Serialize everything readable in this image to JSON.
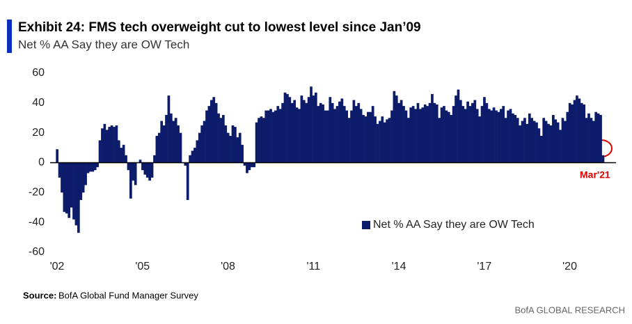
{
  "chart_data": {
    "type": "bar",
    "title": "Exhibit 24: FMS tech overweight cut to  lowest level since Jan’09",
    "subtitle": "Net % AA Say they are OW Tech",
    "annotation": "Mar'21",
    "source_label": "Source:",
    "source": "BofA Global Fund Manager Survey",
    "footer": "BofA GLOBAL RESEARCH",
    "legend_position": "lower right",
    "ylim": [
      -60,
      60
    ],
    "yticks": [
      -60,
      -40,
      -20,
      0,
      20,
      40,
      60
    ],
    "categories": [
      "'02",
      null,
      null,
      null,
      null,
      null,
      null,
      null,
      null,
      null,
      null,
      null,
      null,
      null,
      null,
      null,
      null,
      null,
      null,
      null,
      null,
      null,
      null,
      null,
      null,
      null,
      null,
      null,
      null,
      null,
      null,
      null,
      null,
      null,
      null,
      null,
      "'05",
      null,
      null,
      null,
      null,
      null,
      null,
      null,
      null,
      null,
      null,
      null,
      null,
      null,
      null,
      null,
      null,
      null,
      null,
      null,
      null,
      null,
      null,
      null,
      null,
      null,
      null,
      null,
      null,
      null,
      null,
      null,
      null,
      null,
      null,
      null,
      "'08",
      null,
      null,
      null,
      null,
      null,
      null,
      null,
      null,
      null,
      null,
      null,
      null,
      null,
      null,
      null,
      null,
      null,
      null,
      null,
      null,
      null,
      null,
      null,
      null,
      null,
      null,
      null,
      null,
      null,
      null,
      null,
      null,
      null,
      null,
      null,
      "'11",
      null,
      null,
      null,
      null,
      null,
      null,
      null,
      null,
      null,
      null,
      null,
      null,
      null,
      null,
      null,
      null,
      null,
      null,
      null,
      null,
      null,
      null,
      null,
      null,
      null,
      null,
      null,
      null,
      null,
      null,
      null,
      null,
      null,
      null,
      null,
      "'14",
      null,
      null,
      null,
      null,
      null,
      null,
      null,
      null,
      null,
      null,
      null,
      null,
      null,
      null,
      null,
      null,
      null,
      null,
      null,
      null,
      null,
      null,
      null,
      null,
      null,
      null,
      null,
      null,
      null,
      null,
      null,
      null,
      null,
      null,
      null,
      "'17",
      null,
      null,
      null,
      null,
      null,
      null,
      null,
      null,
      null,
      null,
      null,
      null,
      null,
      null,
      null,
      null,
      null,
      null,
      null,
      null,
      null,
      null,
      null,
      null,
      null,
      null,
      null,
      null,
      null,
      null,
      null,
      null,
      null,
      null,
      null,
      "'20",
      null,
      null,
      null,
      null,
      null,
      null,
      null,
      null,
      null,
      null,
      null,
      null,
      null,
      null
    ],
    "series": [
      {
        "name": "Net % AA Say they are OW Tech",
        "color": "#0c1c6b",
        "values": [
          9,
          -10,
          -20,
          -33,
          -34,
          -37,
          -30,
          -38,
          -42,
          -47,
          -25,
          -20,
          -15,
          -7,
          -6,
          -6,
          -5,
          -3,
          15,
          23,
          26,
          22,
          24,
          25,
          24,
          25,
          15,
          10,
          12,
          5,
          -5,
          -24,
          -12,
          -15,
          0,
          2,
          -5,
          -8,
          -10,
          -12,
          -10,
          5,
          18,
          20,
          28,
          25,
          32,
          45,
          33,
          28,
          30,
          25,
          20,
          0,
          -2,
          -25,
          5,
          8,
          10,
          15,
          20,
          25,
          28,
          35,
          38,
          42,
          44,
          40,
          33,
          30,
          32,
          25,
          20,
          18,
          25,
          24,
          17,
          20,
          12,
          -2,
          -7,
          -5,
          -3,
          -3,
          27,
          30,
          31,
          30,
          35,
          35,
          36,
          34,
          35,
          38,
          36,
          40,
          47,
          46,
          44,
          40,
          42,
          37,
          36,
          45,
          42,
          40,
          44,
          51,
          45,
          47,
          38,
          40,
          39,
          35,
          35,
          44,
          40,
          36,
          38,
          41,
          43,
          38,
          35,
          30,
          35,
          42,
          38,
          40,
          36,
          32,
          31,
          34,
          34,
          38,
          31,
          26,
          28,
          31,
          27,
          29,
          30,
          35,
          48,
          45,
          40,
          42,
          38,
          35,
          30,
          37,
          38,
          36,
          40,
          36,
          37,
          39,
          38,
          40,
          46,
          40,
          39,
          30,
          37,
          38,
          35,
          34,
          32,
          38,
          45,
          49,
          42,
          38,
          36,
          41,
          38,
          40,
          42,
          36,
          31,
          38,
          44,
          40,
          36,
          35,
          37,
          35,
          34,
          36,
          38,
          30,
          35,
          36,
          33,
          32,
          30,
          25,
          28,
          30,
          26,
          33,
          30,
          28,
          27,
          23,
          18,
          30,
          28,
          26,
          25,
          32,
          29,
          27,
          22,
          30,
          28,
          34,
          40,
          39,
          42,
          45,
          43,
          40,
          39,
          30,
          33,
          30,
          28,
          34,
          33,
          32,
          5
        ]
      }
    ]
  }
}
